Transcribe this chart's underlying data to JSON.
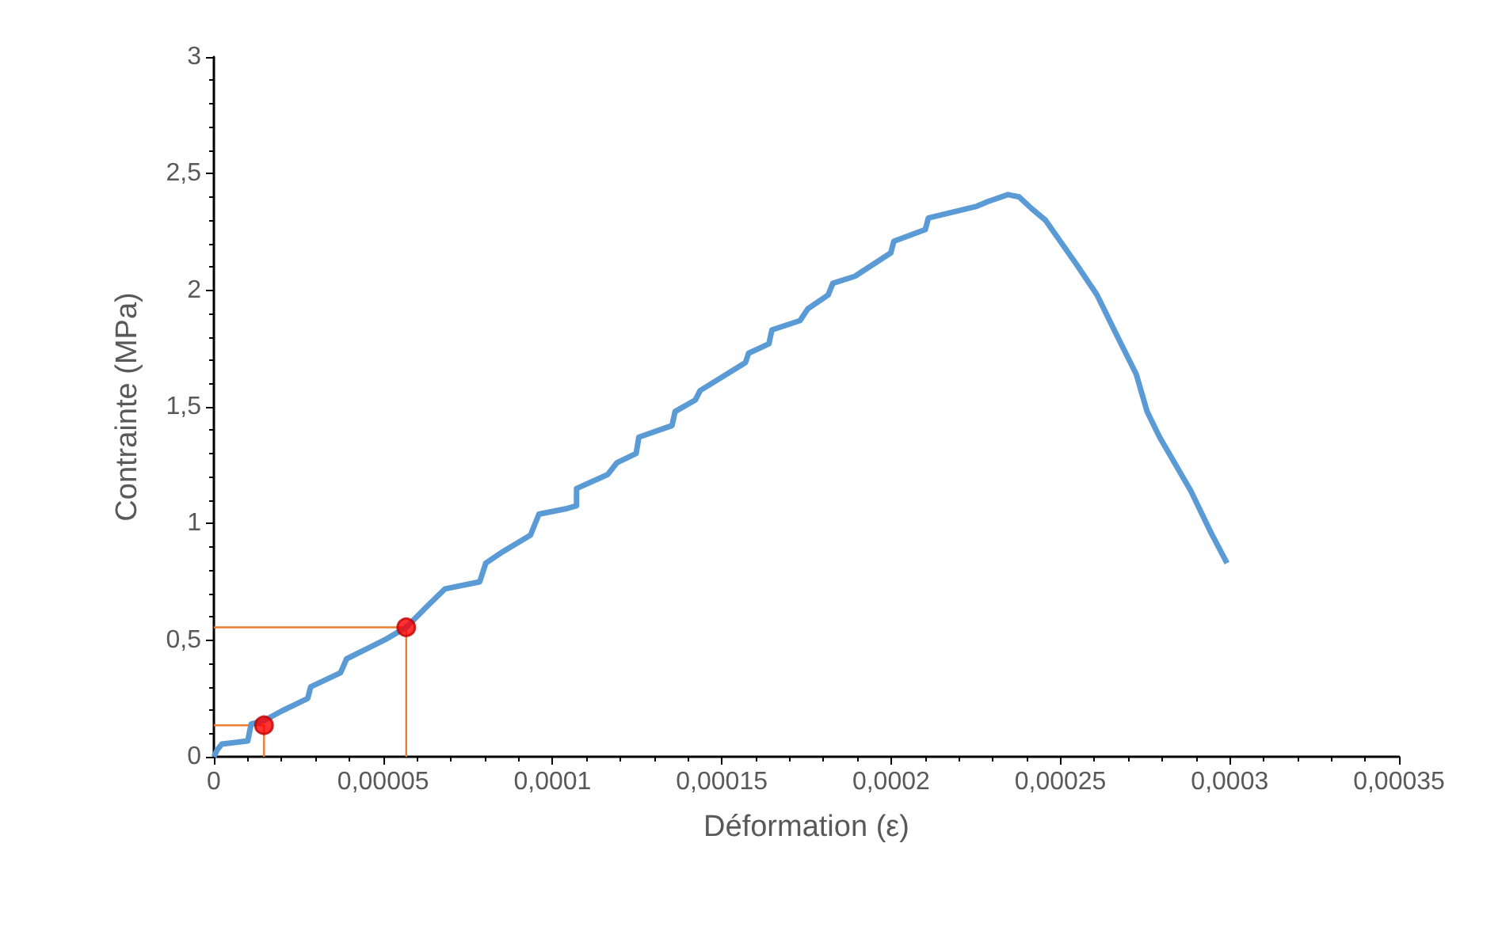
{
  "chart_data": {
    "type": "line",
    "xlabel": "Déformation (ε)",
    "ylabel": "Contrainte (MPa)",
    "xlim": [
      0,
      0.00035
    ],
    "ylim": [
      0,
      3
    ],
    "xticks": [
      0,
      {
        "value": 5e-05,
        "label": "0,00005"
      },
      {
        "value": 0.0001,
        "label": "0,0001"
      },
      {
        "value": 0.00015,
        "label": "0,00015"
      },
      {
        "value": 0.0002,
        "label": "0,0002"
      },
      {
        "value": 0.00025,
        "label": "0,00025"
      },
      {
        "value": 0.0003,
        "label": "0,0003"
      },
      {
        "value": 0.00035,
        "label": "0,00035"
      }
    ],
    "yticks": [
      0,
      {
        "value": 0.5,
        "label": "0,5"
      },
      1,
      {
        "value": 1.5,
        "label": "1,5"
      },
      2,
      {
        "value": 2.5,
        "label": "2,5"
      },
      3
    ],
    "grid": false,
    "series": [
      {
        "color": "#ed7d31",
        "x": [
          0,
          5.68e-05,
          5.68e-05
        ],
        "values": [
          0.555,
          0.555,
          0
        ],
        "marker": "none"
      },
      {
        "color": "#ed7d31",
        "x": [
          0,
          1.48e-05,
          1.48e-05
        ],
        "values": [
          0.135,
          0.135,
          0
        ],
        "marker": "none"
      },
      {
        "color": "#5b9bd5",
        "marker": "none",
        "x": [
          0,
          1e-06,
          2.3e-06,
          1e-05,
          1.1e-05,
          1.48e-05,
          2e-05,
          2.77e-05,
          2.86e-05,
          3.74e-05,
          3.92e-05,
          4.48e-05,
          5.03e-05,
          5.68e-05,
          6.33e-05,
          6.83e-05,
          7.85e-05,
          8.03e-05,
          8.54e-05,
          9.35e-05,
          9.6e-05,
          0.0001039,
          0.0001071,
          0.0001071,
          0.0001163,
          0.000119,
          0.0001247,
          0.0001255,
          0.0001353,
          0.0001362,
          0.0001422,
          0.0001436,
          0.000157,
          0.0001579,
          0.0001639,
          0.0001648,
          0.0001731,
          0.0001754,
          0.0001814,
          0.0001828,
          0.0001893,
          0.0001999,
          0.0002008,
          0.0002101,
          0.000211,
          0.0002253,
          0.0002285,
          0.0002345,
          0.0002378,
          0.0002415,
          0.0002456,
          0.0002548,
          0.0002608,
          0.0002669,
          0.0002724,
          0.0002756,
          0.0002793,
          0.0002885,
          0.0002945,
          0.0002992
        ],
        "values": [
          0,
          0.03,
          0.054,
          0.068,
          0.14,
          0.155,
          0.196,
          0.25,
          0.3,
          0.36,
          0.42,
          0.46,
          0.5,
          0.555,
          0.65,
          0.72,
          0.75,
          0.83,
          0.88,
          0.95,
          1.04,
          1.063,
          1.076,
          1.15,
          1.21,
          1.26,
          1.3,
          1.37,
          1.42,
          1.48,
          1.53,
          1.57,
          1.69,
          1.73,
          1.77,
          1.83,
          1.87,
          1.92,
          1.98,
          2.03,
          2.06,
          2.16,
          2.21,
          2.26,
          2.31,
          2.36,
          2.38,
          2.41,
          2.4,
          2.35,
          2.3,
          2.11,
          1.98,
          1.8,
          1.64,
          1.48,
          1.37,
          1.14,
          0.96,
          0.83
        ]
      },
      {
        "type": "scatter",
        "color": "#ff0000",
        "marker": "circle",
        "x": [
          1.48e-05,
          5.68e-05
        ],
        "values": [
          0.135,
          0.555
        ]
      }
    ]
  }
}
